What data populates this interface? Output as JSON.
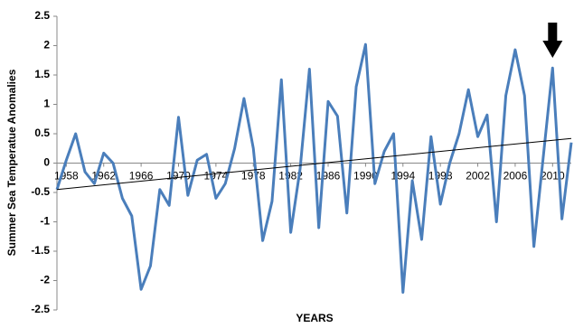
{
  "chart_data": {
    "type": "line",
    "x_label": "YEARS",
    "y_label": "Summer Sea Temperatue Anomalies",
    "x": [
      1957,
      1958,
      1959,
      1960,
      1961,
      1962,
      1963,
      1964,
      1965,
      1966,
      1967,
      1968,
      1969,
      1970,
      1971,
      1972,
      1973,
      1974,
      1975,
      1976,
      1977,
      1978,
      1979,
      1980,
      1981,
      1982,
      1983,
      1984,
      1985,
      1986,
      1987,
      1988,
      1989,
      1990,
      1991,
      1992,
      1993,
      1994,
      1995,
      1996,
      1997,
      1998,
      1999,
      2000,
      2001,
      2002,
      2003,
      2004,
      2005,
      2006,
      2007,
      2008,
      2009,
      2010,
      2011,
      2012
    ],
    "series": [
      {
        "color": "#4a7ebb",
        "values": [
          -0.45,
          0.05,
          0.5,
          -0.15,
          -0.35,
          0.17,
          0.0,
          -0.6,
          -0.9,
          -2.15,
          -1.75,
          -0.45,
          -0.72,
          0.78,
          -0.55,
          0.05,
          0.15,
          -0.6,
          -0.35,
          0.25,
          1.1,
          0.25,
          -1.32,
          -0.65,
          1.42,
          -1.18,
          -0.1,
          1.6,
          -1.1,
          1.05,
          0.8,
          -0.85,
          1.3,
          2.02,
          -0.35,
          0.2,
          0.5,
          -2.2,
          -0.3,
          -1.3,
          0.45,
          -0.7,
          0.0,
          0.5,
          1.25,
          0.45,
          0.82,
          -1.0,
          1.15,
          1.93,
          1.15,
          -1.42,
          0.1,
          1.62,
          -0.95,
          0.35
        ]
      }
    ],
    "trendline": {
      "color": "#000000",
      "values": [
        -0.45,
        0.42
      ]
    },
    "highlight_year": 2010,
    "xlim": [
      1957,
      2012
    ],
    "xticks": [
      1958,
      1962,
      1966,
      1970,
      1974,
      1978,
      1982,
      1986,
      1990,
      1994,
      1998,
      2002,
      2006,
      2010
    ],
    "ylim": [
      -2.5,
      2.5
    ],
    "yticks": [
      -2.5,
      -2,
      -1.5,
      -1,
      -0.5,
      0,
      0.5,
      1,
      1.5,
      2,
      2.5
    ],
    "grid": false
  }
}
